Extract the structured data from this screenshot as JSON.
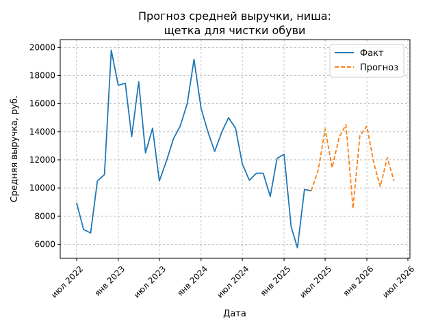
{
  "chart_data": {
    "type": "line",
    "title_line1": "Прогноз средней выручки, ниша:",
    "title_line2": "щетка для чистки обуви",
    "xlabel": "Дата",
    "ylabel": "Средняя выручка, руб.",
    "x_ticks": [
      {
        "date": "2022-07-01",
        "label": "июл 2022"
      },
      {
        "date": "2023-01-01",
        "label": "янв 2023"
      },
      {
        "date": "2023-07-01",
        "label": "июл 2023"
      },
      {
        "date": "2024-01-01",
        "label": "янв 2024"
      },
      {
        "date": "2024-07-01",
        "label": "июл 2024"
      },
      {
        "date": "2025-01-01",
        "label": "янв 2025"
      },
      {
        "date": "2025-07-01",
        "label": "июл 2025"
      },
      {
        "date": "2026-01-01",
        "label": "янв 2026"
      },
      {
        "date": "2026-07-01",
        "label": "июл 2026"
      }
    ],
    "y_ticks": [
      6000,
      8000,
      10000,
      12000,
      14000,
      16000,
      18000,
      20000
    ],
    "xlim": [
      "2022-04-20",
      "2026-07-10"
    ],
    "ylim": [
      5000,
      20550
    ],
    "grid": true,
    "legend_position": "top-right",
    "series": [
      {
        "name": "Факт",
        "color": "#1f77b4",
        "style": "solid",
        "points": [
          [
            "2022-07-01",
            8950
          ],
          [
            "2022-08-01",
            7050
          ],
          [
            "2022-09-01",
            6800
          ],
          [
            "2022-10-01",
            10500
          ],
          [
            "2022-11-01",
            10950
          ],
          [
            "2022-12-01",
            19800
          ],
          [
            "2023-01-01",
            17300
          ],
          [
            "2023-02-01",
            17450
          ],
          [
            "2023-03-01",
            13650
          ],
          [
            "2023-04-01",
            17550
          ],
          [
            "2023-05-01",
            12500
          ],
          [
            "2023-06-01",
            14250
          ],
          [
            "2023-07-01",
            10500
          ],
          [
            "2023-08-01",
            11900
          ],
          [
            "2023-09-01",
            13500
          ],
          [
            "2023-10-01",
            14400
          ],
          [
            "2023-11-01",
            16000
          ],
          [
            "2023-12-01",
            19150
          ],
          [
            "2024-01-01",
            15650
          ],
          [
            "2024-02-01",
            13950
          ],
          [
            "2024-03-01",
            12600
          ],
          [
            "2024-04-01",
            13950
          ],
          [
            "2024-05-01",
            15000
          ],
          [
            "2024-06-01",
            14250
          ],
          [
            "2024-07-01",
            11700
          ],
          [
            "2024-08-01",
            10550
          ],
          [
            "2024-09-01",
            11050
          ],
          [
            "2024-10-01",
            11050
          ],
          [
            "2024-11-01",
            9400
          ],
          [
            "2024-12-01",
            12100
          ],
          [
            "2025-01-01",
            12400
          ],
          [
            "2025-02-01",
            7250
          ],
          [
            "2025-03-01",
            5750
          ],
          [
            "2025-04-01",
            9900
          ],
          [
            "2025-05-01",
            9800
          ]
        ]
      },
      {
        "name": "Прогноз",
        "color": "#ff7f0e",
        "style": "dashed",
        "points": [
          [
            "2025-05-01",
            9800
          ],
          [
            "2025-06-01",
            11300
          ],
          [
            "2025-07-01",
            14200
          ],
          [
            "2025-08-01",
            11450
          ],
          [
            "2025-09-01",
            13600
          ],
          [
            "2025-10-01",
            14500
          ],
          [
            "2025-11-01",
            8550
          ],
          [
            "2025-12-01",
            13700
          ],
          [
            "2026-01-01",
            14400
          ],
          [
            "2026-02-01",
            11750
          ],
          [
            "2026-03-01",
            10100
          ],
          [
            "2026-04-01",
            12150
          ],
          [
            "2026-05-01",
            10500
          ]
        ]
      }
    ]
  }
}
